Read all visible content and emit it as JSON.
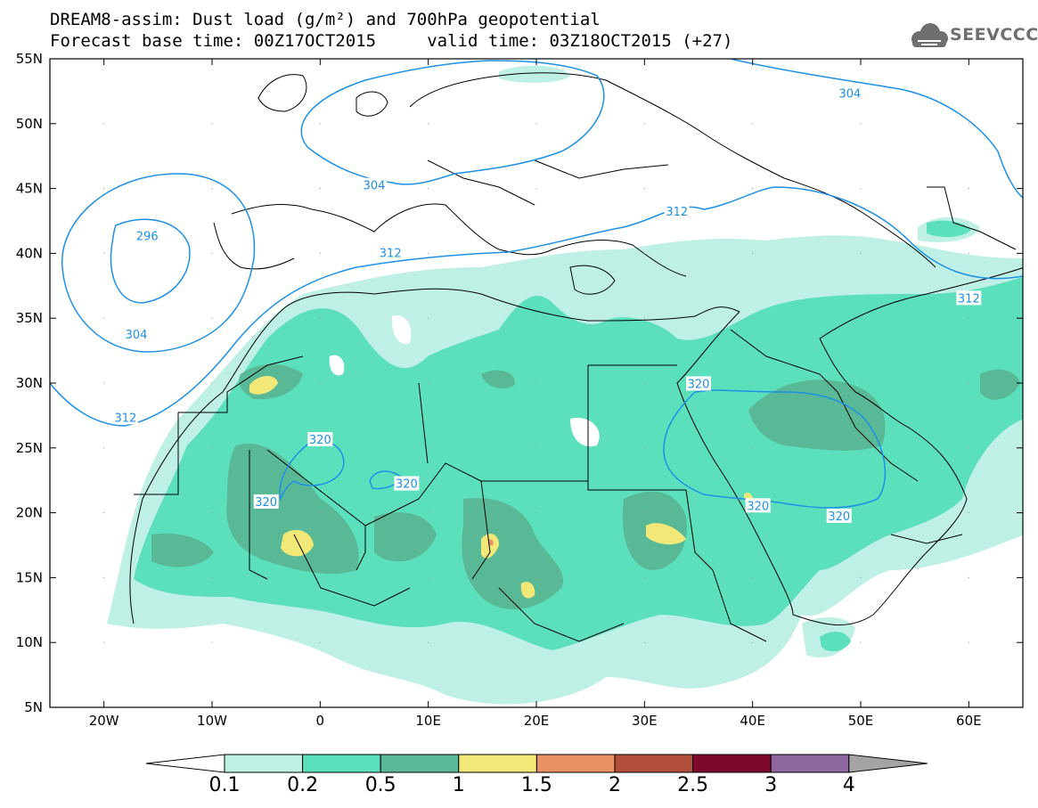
{
  "title": {
    "line1": "DREAM8-assim: Dust load (g/m²) and 700hPa geopotential",
    "line2": "Forecast base time: 00Z17OCT2015     valid time: 03Z18OCT2015 (+27)"
  },
  "logo": {
    "text": "SEEVCCC",
    "icon": "cloud-logo-icon"
  },
  "map": {
    "lon_range": [
      -25,
      65
    ],
    "lat_range": [
      5,
      55
    ],
    "lat_ticks": [
      "55N",
      "50N",
      "45N",
      "40N",
      "35N",
      "30N",
      "25N",
      "20N",
      "15N",
      "10N",
      "5N"
    ],
    "lon_ticks": [
      "20W",
      "10W",
      "0",
      "10E",
      "20E",
      "30E",
      "40E",
      "50E",
      "60E"
    ],
    "contour_labels": [
      {
        "text": "304",
        "lon": 49,
        "lat": 52.3
      },
      {
        "text": "304",
        "lon": 5,
        "lat": 45.2
      },
      {
        "text": "296",
        "lon": -16,
        "lat": 41.3
      },
      {
        "text": "304",
        "lon": -17,
        "lat": 33.7
      },
      {
        "text": "312",
        "lon": -18,
        "lat": 27.3
      },
      {
        "text": "312",
        "lon": 33,
        "lat": 43.2
      },
      {
        "text": "312",
        "lon": 6.5,
        "lat": 40.0
      },
      {
        "text": "312",
        "lon": 60,
        "lat": 36.5
      },
      {
        "text": "320",
        "lon": 0,
        "lat": 25.6
      },
      {
        "text": "320",
        "lon": 8,
        "lat": 22.2
      },
      {
        "text": "320",
        "lon": -5,
        "lat": 20.8
      },
      {
        "text": "320",
        "lon": 35,
        "lat": 29.9
      },
      {
        "text": "320",
        "lon": 40.5,
        "lat": 20.5
      },
      {
        "text": "320",
        "lon": 48,
        "lat": 19.7
      }
    ]
  },
  "colorbar": {
    "labels": [
      "0.1",
      "0.2",
      "0.5",
      "1",
      "1.5",
      "2",
      "2.5",
      "3",
      "4"
    ],
    "colors": [
      "#bff0e6",
      "#5ce0bb",
      "#59b896",
      "#f2e878",
      "#e99065",
      "#b14e3c",
      "#7d0a2a",
      "#8e66a0"
    ],
    "under_color": "#ffffff",
    "over_color": "#a4a4a4"
  }
}
